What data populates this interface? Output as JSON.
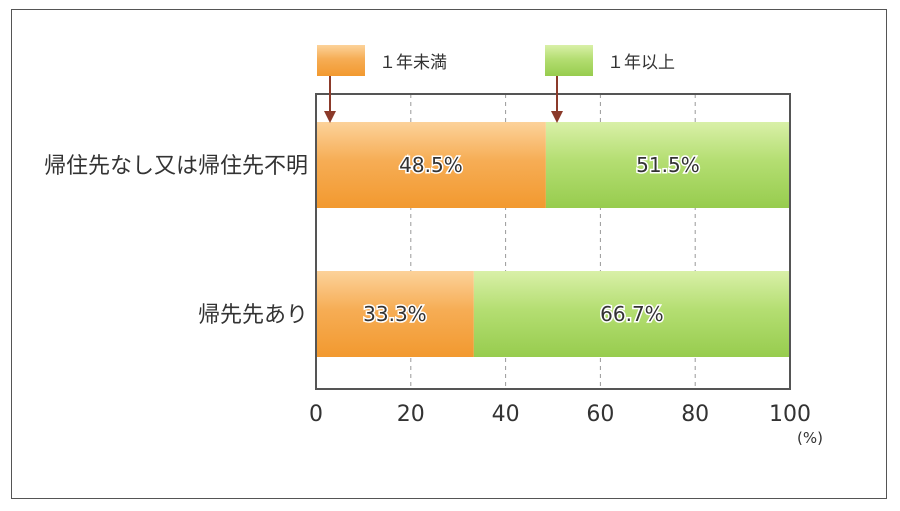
{
  "chart_data": {
    "type": "bar",
    "orientation": "horizontal",
    "stacked": true,
    "categories": [
      "帰住先なし又は帰住先不明",
      "帰先先あり"
    ],
    "series": [
      {
        "name": "１年未満",
        "values": [
          48.5,
          33.3
        ],
        "labels": [
          "48.5%",
          "33.3%"
        ],
        "color": "#f6a94e"
      },
      {
        "name": "１年以上",
        "values": [
          51.5,
          66.7
        ],
        "labels": [
          "51.5%",
          "66.7%"
        ],
        "color": "#a8d665"
      }
    ],
    "xlim": [
      0,
      100
    ],
    "xticks": [
      0,
      20,
      40,
      60,
      80,
      100
    ],
    "xunit": "(%)",
    "grid": "vertical dashed",
    "legend_position": "top",
    "colors": {
      "arrow": "#8b3a2a",
      "axis": "#555555",
      "grid": "#999999"
    }
  }
}
